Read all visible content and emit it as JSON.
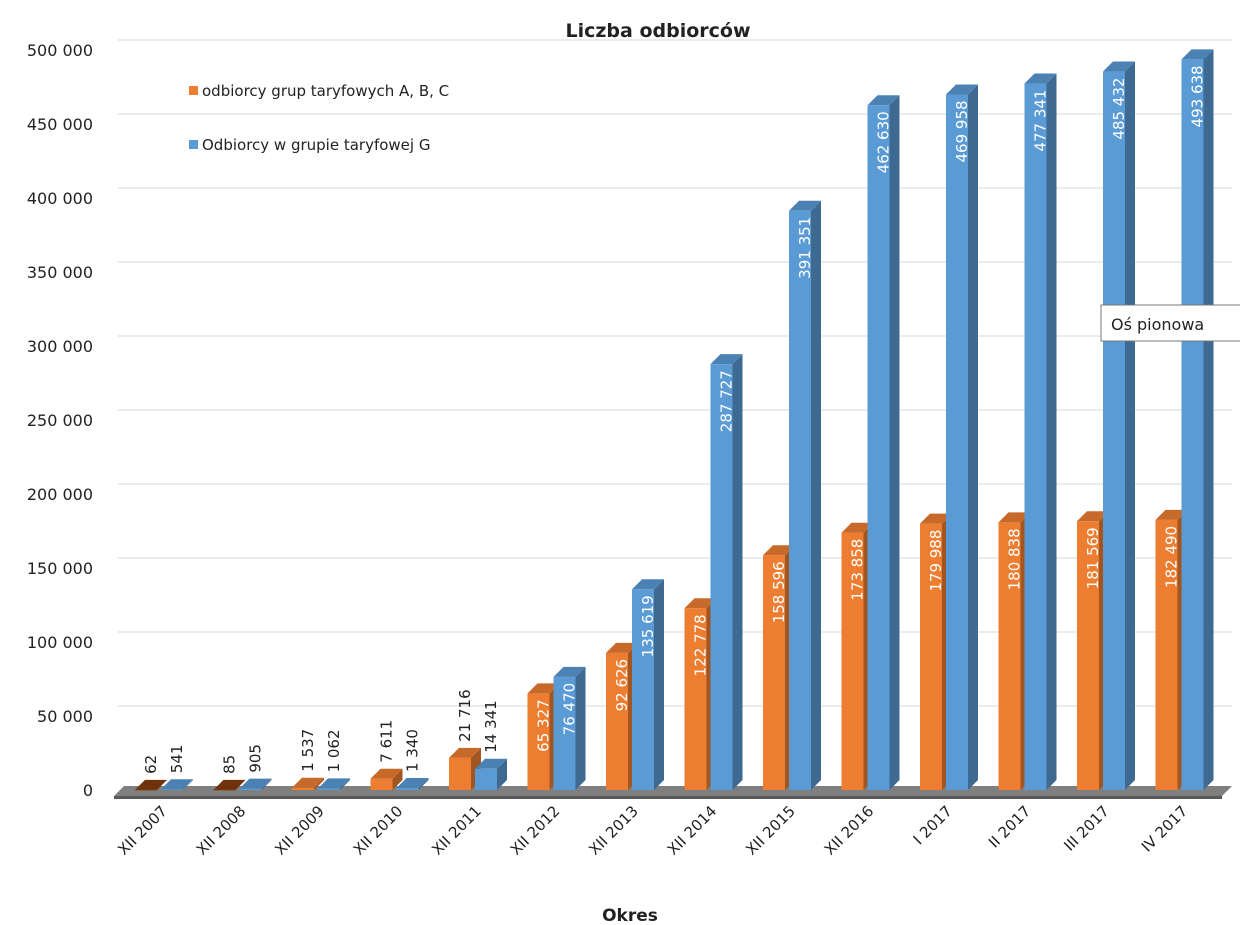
{
  "chart_data": {
    "type": "bar",
    "title": "Liczba odbiorców",
    "xlabel": "Okres",
    "ylabel": "",
    "ylim": [
      0,
      500000
    ],
    "yticks": [
      "0",
      "50 000",
      "100 000",
      "150 000",
      "200 000",
      "250 000",
      "300 000",
      "350 000",
      "400 000",
      "450 000",
      "500 000"
    ],
    "categories": [
      "XII 2007",
      "XII 2008",
      "XII 2009",
      "XII 2010",
      "XII 2011",
      "XII 2012",
      "XII 2013",
      "XII 2014",
      "XII 2015",
      "XII 2016",
      "I 2017",
      "II 2017",
      "III 2017",
      "IV 2017"
    ],
    "series": [
      {
        "name": "odbiorcy grup taryfowych A, B, C",
        "color": "#ed7d31",
        "values": [
          62,
          85,
          1537,
          7611,
          21716,
          65327,
          92626,
          122778,
          158596,
          173858,
          179988,
          180838,
          181569,
          182490
        ],
        "labels": [
          "62",
          "85",
          "1 537",
          "7 611",
          "21 716",
          "65 327",
          "92 626",
          "122 778",
          "158 596",
          "173 858",
          "179 988",
          "180 838",
          "181 569",
          "182 490"
        ]
      },
      {
        "name": "Odbiorcy w grupie taryfowej G",
        "color": "#5b9bd5",
        "values": [
          541,
          905,
          1062,
          1340,
          14341,
          76470,
          135619,
          287727,
          391351,
          462630,
          469958,
          477341,
          485432,
          493638
        ],
        "labels": [
          "541",
          "905",
          "1 062",
          "1 340",
          "14 341",
          "76 470",
          "135 619",
          "287 727",
          "391 351",
          "462 630",
          "469 958",
          "477 341",
          "485 432",
          "493 638"
        ]
      }
    ],
    "grid": true,
    "legend_position": "top-left"
  },
  "tooltip": {
    "text": "Oś pionowa"
  }
}
